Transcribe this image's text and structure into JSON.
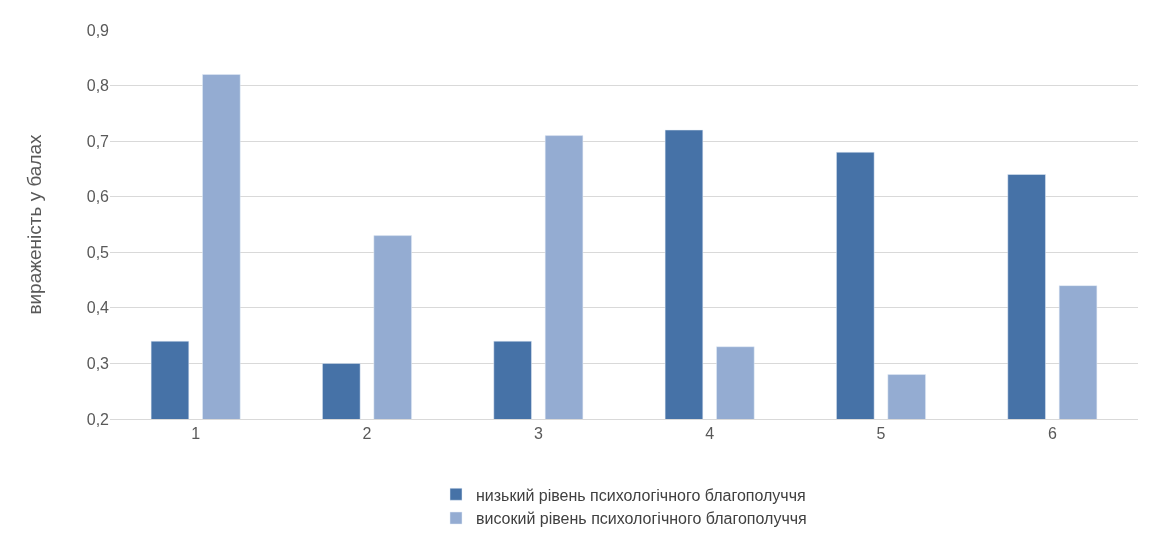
{
  "chart_data": {
    "type": "bar",
    "ylabel": "вираженість у балах",
    "categories": [
      "1",
      "2",
      "3",
      "4",
      "5",
      "6"
    ],
    "series": [
      {
        "name": "низький рівень психологічного благополуччя",
        "color": "#4672a7",
        "values": [
          0.34,
          0.3,
          0.34,
          0.72,
          0.68,
          0.64
        ]
      },
      {
        "name": "високий рівень психологічного благополуччя",
        "color": "#94acd2",
        "values": [
          0.82,
          0.53,
          0.71,
          0.33,
          0.28,
          0.44
        ]
      }
    ],
    "ylim": [
      0.2,
      0.9
    ],
    "yticks": [
      {
        "value": 0.2,
        "label": "0,2"
      },
      {
        "value": 0.3,
        "label": "0,3"
      },
      {
        "value": 0.4,
        "label": "0,4"
      },
      {
        "value": 0.5,
        "label": "0,5"
      },
      {
        "value": 0.6,
        "label": "0,6"
      },
      {
        "value": 0.7,
        "label": "0,7"
      },
      {
        "value": 0.8,
        "label": "0,8"
      },
      {
        "value": 0.9,
        "label": "0,9"
      }
    ],
    "grid": "y",
    "legend": "bottom"
  }
}
